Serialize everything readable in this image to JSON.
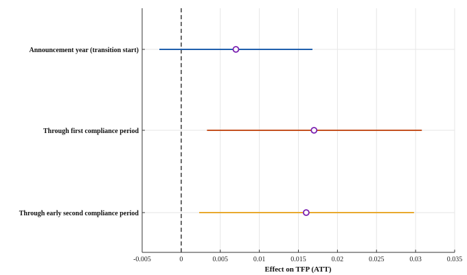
{
  "chart_data": {
    "type": "forest",
    "title": "",
    "xlabel": "Effect on TFP (ATT)",
    "ylabel": "",
    "xlim": [
      -0.005,
      0.035
    ],
    "xticks": [
      -0.005,
      0,
      0.005,
      0.01,
      0.015,
      0.02,
      0.025,
      0.03,
      0.035
    ],
    "xtick_labels": [
      "-0.005",
      "0",
      "0.005",
      "0.01",
      "0.015",
      "0.02",
      "0.025",
      "0.03",
      "0.035"
    ],
    "grid": true,
    "reference_line": 0,
    "categories": [
      "Announcement year (transition start)",
      "Through first compliance period",
      "Through early second compliance period"
    ],
    "series": [
      {
        "category": "Announcement year (transition start)",
        "estimate": 0.007,
        "ci_low": -0.0028,
        "ci_high": 0.0168,
        "color": "#1f5fad"
      },
      {
        "category": "Through first compliance period",
        "estimate": 0.017,
        "ci_low": 0.0033,
        "ci_high": 0.0308,
        "color": "#c4501f"
      },
      {
        "category": "Through early second compliance period",
        "estimate": 0.016,
        "ci_low": 0.0023,
        "ci_high": 0.0298,
        "color": "#e8a92e"
      }
    ],
    "marker_color": "#7a1fb0"
  }
}
